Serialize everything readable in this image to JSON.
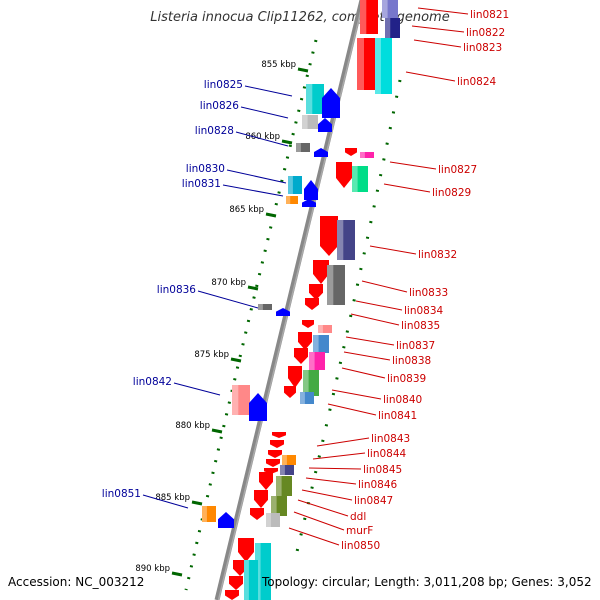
{
  "title": "Listeria innocua Clip11262, complete genome",
  "accession": "Accession: NC_003212",
  "summary": "Topology: circular; Length: 3,011,208 bp; Genes: 3,052",
  "colors": {
    "left_label": "#000099",
    "right_label": "#cc0000",
    "tick": "#006600",
    "backbone": "#888888"
  },
  "scale": [
    {
      "label": "855 kbp"
    },
    {
      "label": "860 kbp"
    },
    {
      "label": "865 kbp"
    },
    {
      "label": "870 kbp"
    },
    {
      "label": "875 kbp"
    },
    {
      "label": "880 kbp"
    },
    {
      "label": "885 kbp"
    },
    {
      "label": "890 kbp"
    }
  ],
  "left_genes": [
    {
      "label": "lin0825"
    },
    {
      "label": "lin0826"
    },
    {
      "label": "lin0828"
    },
    {
      "label": "lin0830"
    },
    {
      "label": "lin0831"
    },
    {
      "label": "lin0836"
    },
    {
      "label": "lin0842"
    },
    {
      "label": "lin0851"
    }
  ],
  "right_genes": [
    {
      "label": "lin0821"
    },
    {
      "label": "lin0822"
    },
    {
      "label": "lin0823"
    },
    {
      "label": "lin0824"
    },
    {
      "label": "lin0827"
    },
    {
      "label": "lin0829"
    },
    {
      "label": "lin0832"
    },
    {
      "label": "lin0833"
    },
    {
      "label": "lin0834"
    },
    {
      "label": "lin0835"
    },
    {
      "label": "lin0837"
    },
    {
      "label": "lin0838"
    },
    {
      "label": "lin0839"
    },
    {
      "label": "lin0840"
    },
    {
      "label": "lin0841"
    },
    {
      "label": "lin0843"
    },
    {
      "label": "lin0844"
    },
    {
      "label": "lin0845"
    },
    {
      "label": "lin0846"
    },
    {
      "label": "lin0847"
    },
    {
      "label": "ddl"
    },
    {
      "label": "murF"
    },
    {
      "label": "lin0850"
    }
  ]
}
